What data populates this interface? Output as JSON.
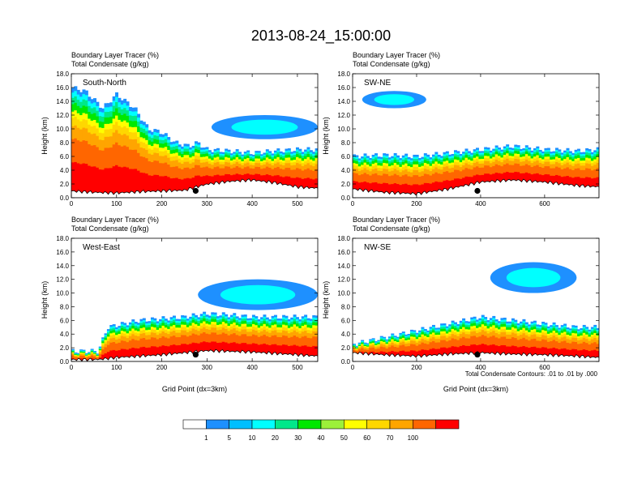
{
  "title": "2013-08-24_15:00:00",
  "field_labels": [
    "Boundary Layer Tracer   (%)",
    "Total Condensate   (g/kg)"
  ],
  "x_axis_label": "Grid Point (dx=3km)",
  "y_axis_label": "Height (km)",
  "footnote": "Total Condensate Contours: .01 to .01 by .000",
  "colorbar": {
    "colors": [
      "#ffffff",
      "#1e90ff",
      "#00bfff",
      "#00ffff",
      "#00e88a",
      "#00e800",
      "#9cf03a",
      "#ffff00",
      "#ffd700",
      "#ffa500",
      "#ff6600",
      "#ff0000"
    ],
    "labels": [
      "1",
      "5",
      "10",
      "20",
      "30",
      "40",
      "50",
      "60",
      "70",
      "100"
    ]
  },
  "chart_data": [
    {
      "type": "heatmap",
      "panel_title": "South-North",
      "xlim": [
        0,
        545
      ],
      "ylim": [
        0,
        18
      ],
      "xticks": [
        0,
        100,
        200,
        300,
        400,
        500
      ],
      "yticks": [
        0.0,
        2.0,
        4.0,
        6.0,
        8.0,
        10.0,
        12.0,
        14.0,
        16.0,
        18.0
      ],
      "ytick_labels": [
        "0.0",
        "2.0",
        "4.0",
        "6.0",
        "8.0",
        "10.0",
        "12.0",
        "14.0",
        "16.0",
        "18.0"
      ],
      "xlabel": "",
      "marker": {
        "x": 275,
        "y": 1.0
      },
      "tracer_top_km": [
        [
          0,
          16
        ],
        [
          30,
          15.5
        ],
        [
          70,
          13
        ],
        [
          100,
          15
        ],
        [
          140,
          13
        ],
        [
          170,
          10
        ],
        [
          200,
          9.5
        ],
        [
          230,
          8
        ],
        [
          260,
          7.5
        ],
        [
          280,
          8
        ],
        [
          300,
          7
        ],
        [
          350,
          6.8
        ],
        [
          400,
          6.5
        ],
        [
          450,
          6.8
        ],
        [
          500,
          7
        ],
        [
          545,
          7
        ]
      ],
      "terrain_km": [
        [
          0,
          1.2
        ],
        [
          50,
          1.0
        ],
        [
          100,
          0.9
        ],
        [
          150,
          1.1
        ],
        [
          200,
          1.2
        ],
        [
          250,
          1.3
        ],
        [
          300,
          2.2
        ],
        [
          350,
          2.6
        ],
        [
          400,
          2.8
        ],
        [
          450,
          2.4
        ],
        [
          500,
          1.8
        ],
        [
          545,
          1.6
        ]
      ],
      "upper_cloud": {
        "x0": 310,
        "x1": 545,
        "y0": 8.5,
        "y1": 12.0
      }
    },
    {
      "type": "heatmap",
      "panel_title": "SW-NE",
      "xlim": [
        0,
        770
      ],
      "ylim": [
        0,
        18
      ],
      "xticks": [
        0,
        200,
        400,
        600
      ],
      "yticks": [
        0.0,
        2.0,
        4.0,
        6.0,
        8.0,
        10.0,
        12.0,
        14.0,
        16.0,
        18.0
      ],
      "ytick_labels": [
        "0.0",
        "2.0",
        "4.0",
        "6.0",
        "8.0",
        "10.0",
        "12.0",
        "14.0",
        "16.0",
        "18.0"
      ],
      "xlabel": "",
      "marker": {
        "x": 390,
        "y": 1.0
      },
      "tracer_top_km": [
        [
          0,
          6
        ],
        [
          100,
          6.2
        ],
        [
          200,
          6.0
        ],
        [
          300,
          6.5
        ],
        [
          400,
          7.0
        ],
        [
          500,
          7.5
        ],
        [
          600,
          7.0
        ],
        [
          700,
          6.8
        ],
        [
          770,
          7.0
        ]
      ],
      "terrain_km": [
        [
          0,
          1.5
        ],
        [
          100,
          1.0
        ],
        [
          200,
          0.8
        ],
        [
          300,
          1.5
        ],
        [
          400,
          2.5
        ],
        [
          500,
          2.8
        ],
        [
          600,
          2.5
        ],
        [
          700,
          2.0
        ],
        [
          770,
          1.8
        ]
      ],
      "upper_cloud": {
        "x0": 30,
        "x1": 230,
        "y0": 13.0,
        "y1": 15.5
      }
    },
    {
      "type": "heatmap",
      "panel_title": "West-East",
      "xlim": [
        0,
        545
      ],
      "ylim": [
        0,
        18
      ],
      "xticks": [
        0,
        100,
        200,
        300,
        400,
        500
      ],
      "yticks": [
        0.0,
        2.0,
        4.0,
        6.0,
        8.0,
        10.0,
        12.0,
        14.0,
        16.0,
        18.0
      ],
      "ytick_labels": [
        "0.0",
        "2.0",
        "4.0",
        "6.0",
        "8.0",
        "10.0",
        "12.0",
        "14.0",
        "16.0",
        "18.0"
      ],
      "xlabel": "Grid Point (dx=3km)",
      "marker": {
        "x": 275,
        "y": 1.0
      },
      "tracer_top_km": [
        [
          0,
          1.5
        ],
        [
          60,
          1.5
        ],
        [
          80,
          5.0
        ],
        [
          150,
          6.0
        ],
        [
          250,
          6.5
        ],
        [
          300,
          7.0
        ],
        [
          350,
          6.8
        ],
        [
          400,
          6.5
        ],
        [
          500,
          6.5
        ],
        [
          545,
          6.5
        ]
      ],
      "terrain_km": [
        [
          0,
          0.5
        ],
        [
          60,
          0.5
        ],
        [
          100,
          0.8
        ],
        [
          200,
          1.2
        ],
        [
          300,
          1.8
        ],
        [
          400,
          1.6
        ],
        [
          500,
          1.2
        ],
        [
          545,
          1.0
        ]
      ],
      "upper_cloud": {
        "x0": 280,
        "x1": 545,
        "y0": 7.5,
        "y1": 12.0
      }
    },
    {
      "type": "heatmap",
      "panel_title": "NW-SE",
      "xlim": [
        0,
        770
      ],
      "ylim": [
        0,
        18
      ],
      "xticks": [
        0,
        200,
        400,
        600
      ],
      "yticks": [
        0.0,
        2.0,
        4.0,
        6.0,
        8.0,
        10.0,
        12.0,
        14.0,
        16.0,
        18.0
      ],
      "ytick_labels": [
        "0.0",
        "2.0",
        "4.0",
        "6.0",
        "8.0",
        "10.0",
        "12.0",
        "14.0",
        "16.0",
        "18.0"
      ],
      "xlabel": "Grid Point (dx=3km)",
      "marker": {
        "x": 390,
        "y": 1.0
      },
      "tracer_top_km": [
        [
          0,
          2.5
        ],
        [
          100,
          3.5
        ],
        [
          200,
          4.5
        ],
        [
          300,
          5.5
        ],
        [
          400,
          6.5
        ],
        [
          500,
          6.0
        ],
        [
          600,
          5.5
        ],
        [
          700,
          5.0
        ],
        [
          770,
          5.0
        ]
      ],
      "terrain_km": [
        [
          0,
          1.5
        ],
        [
          100,
          1.2
        ],
        [
          200,
          1.0
        ],
        [
          300,
          1.3
        ],
        [
          400,
          1.5
        ],
        [
          500,
          1.3
        ],
        [
          600,
          1.2
        ],
        [
          700,
          1.0
        ],
        [
          770,
          0.8
        ]
      ],
      "upper_cloud": {
        "x0": 430,
        "x1": 700,
        "y0": 10.0,
        "y1": 14.5
      }
    }
  ]
}
